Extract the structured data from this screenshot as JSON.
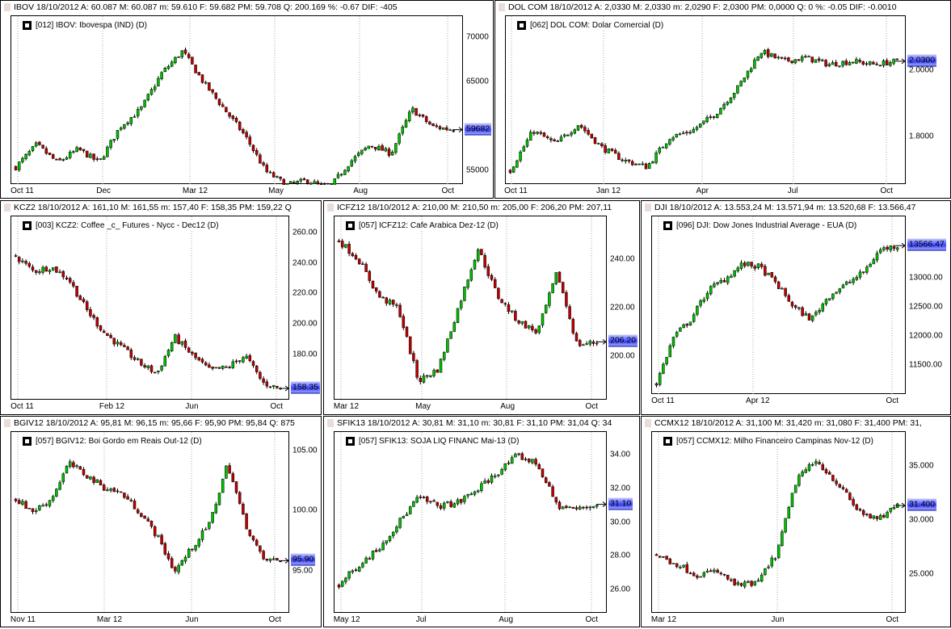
{
  "colors": {
    "up": "#00c000",
    "down": "#c00000",
    "wick": "#000000",
    "last_price_bg": "#3c46ff"
  },
  "chart_data": [
    {
      "type": "candlestick",
      "header": "IBOV   18/10/2012  A: 60.087   M: 60.087   m: 59.610   F: 59.682  PM: 59.708  Q: 200.169  %: -0.67  DIF: -405",
      "legend": "[012] IBOV: Ibovespa          (IND)      (D)",
      "ylim": [
        53500,
        72400
      ],
      "yticks": [
        "70000",
        "65000",
        "55000"
      ],
      "ytick_values": [
        70000,
        65000,
        55000
      ],
      "last": "59682",
      "last_value": 59682,
      "xticks": [
        "Oct 11",
        "Dec",
        "Mar 12",
        "May",
        "Aug",
        "Oct"
      ],
      "path": [
        55500,
        58000,
        56000,
        57500,
        56000,
        60000,
        62000,
        66000,
        68500,
        65000,
        62000,
        59000,
        55000,
        53500,
        54000,
        53000,
        56000,
        58000,
        57000,
        62000,
        60000,
        59700
      ]
    },
    {
      "type": "candlestick",
      "header": "DOL COM   18/10/2012  A: 2,0330   M: 2,0330   m: 2,0290   F: 2,0300  PM: 0,0000  Q: 0   %: -0.05  DIF: -0.0010",
      "legend": "[062] DOL COM: Dolar Comercial       (D)",
      "ylim": [
        1.656,
        2.166
      ],
      "yticks": [
        "2.0000",
        "1.8000"
      ],
      "ytick_values": [
        2.0,
        1.8
      ],
      "last": "2.0300",
      "last_value": 2.03,
      "xticks": [
        "Oct 11",
        "Jan 12",
        "Apr",
        "Jul",
        "Oct"
      ],
      "path": [
        1.7,
        1.82,
        1.78,
        1.84,
        1.77,
        1.73,
        1.71,
        1.8,
        1.82,
        1.87,
        1.95,
        2.06,
        2.03,
        2.04,
        2.02,
        2.03,
        2.02,
        2.03
      ]
    },
    {
      "type": "candlestick",
      "header": "KCZ2   18/10/2012  A: 161,10   M: 161,55   m: 157,40   F: 158,35  PM: 159,22  Q",
      "legend": "[003] KCZ2: Coffee _c_ Futures - Nycc - Dec12      (D)",
      "ylim": [
        150.4,
        271
      ],
      "yticks": [
        "260.00",
        "240.00",
        "220.00",
        "200.00",
        "180.00"
      ],
      "ytick_values": [
        260,
        240,
        220,
        200,
        180
      ],
      "last": "158.35",
      "last_value": 158.35,
      "xticks": [
        "Oct 11",
        "Feb 12",
        "Jun",
        "Oct"
      ],
      "path": [
        245,
        235,
        238,
        230,
        210,
        195,
        185,
        175,
        168,
        192,
        180,
        170,
        172,
        180,
        162,
        158
      ]
    },
    {
      "type": "candlestick",
      "header": "ICFZ12   18/10/2012  A: 210,00   M: 210,50   m: 205,00   F: 206,20  PM: 207,11",
      "legend": "[057] ICFZ12: Cafe Arabica Dez-12       (D)",
      "ylim": [
        182,
        258
      ],
      "yticks": [
        "240.00",
        "220.00",
        "200.00"
      ],
      "ytick_values": [
        240,
        220,
        200
      ],
      "last": "206.20",
      "last_value": 206.2,
      "xticks": [
        "Mar 12",
        "May",
        "Aug",
        "Oct"
      ],
      "path": [
        248,
        240,
        225,
        220,
        190,
        195,
        220,
        245,
        225,
        215,
        210,
        235,
        205,
        206
      ]
    },
    {
      "type": "candlestick",
      "header": "DJI   18/10/2012  A: 13.553,24   M: 13.571,94   m: 13.520,68   F: 13.566,47",
      "legend": "[096] DJI: Dow Jones Industrial Average - EUA      (D)",
      "ylim": [
        11000,
        14070
      ],
      "yticks": [
        "13000.00",
        "12500.00",
        "12000.00",
        "11500.00"
      ],
      "ytick_values": [
        13000,
        12500,
        12000,
        11500
      ],
      "last": "13566.47",
      "last_value": 13566.47,
      "xticks": [
        "Oct 11",
        "Apr 12",
        "Oct"
      ],
      "path": [
        11200,
        12000,
        12300,
        12800,
        13000,
        13250,
        13200,
        12900,
        12500,
        12300,
        12700,
        12900,
        13100,
        13500,
        13566
      ]
    },
    {
      "type": "candlestick",
      "header": "BGIV12   18/10/2012  A: 95,81   M: 96,15   m: 95,66   F: 95,90  PM: 95,84  Q: 875",
      "legend": "[057] BGIV12: Boi Gordo em Reais Out-12      (D)",
      "ylim": [
        91.5,
        106.6
      ],
      "yticks": [
        "105.00",
        "100.00",
        "95.00"
      ],
      "ytick_values": [
        105,
        100,
        95
      ],
      "last": "95.90",
      "last_value": 95.9,
      "xticks": [
        "Nov 11",
        "Mar 12",
        "Jun",
        "Oct"
      ],
      "path": [
        101,
        100,
        101,
        104,
        103,
        102,
        101.5,
        100,
        98,
        95,
        97,
        99,
        104,
        99,
        96,
        95.9
      ]
    },
    {
      "type": "candlestick",
      "header": "SFIK13   18/10/2012  A: 30,81   M: 31,10   m: 30,81   F: 31,10  PM: 31,04  Q: 34",
      "legend": "[057] SFIK13: SOJA LIQ FINANC Mai-13      (D)",
      "ylim": [
        24.6,
        35.4
      ],
      "yticks": [
        "34.00",
        "32.00",
        "30.00",
        "28.00",
        "26.00"
      ],
      "ytick_values": [
        34,
        32,
        30,
        28,
        26
      ],
      "last": "31.10",
      "last_value": 31.1,
      "xticks": [
        "May 12",
        "Jul",
        "Aug",
        "Oct"
      ],
      "path": [
        26.3,
        27.5,
        28.5,
        30,
        31.5,
        31,
        31.2,
        32,
        33,
        34,
        33.5,
        31,
        30.8,
        31.1
      ]
    },
    {
      "type": "candlestick",
      "header": "CCMX12   18/10/2012  A: 31,100   M: 31,420   m: 31,080   F: 31,400  PM: 31,",
      "legend": "[057] CCMX12: Milho Financeiro Campinas Nov-12      (D)",
      "ylim": [
        21.4,
        38.2
      ],
      "yticks": [
        "35.000",
        "30.000",
        "25.000"
      ],
      "ytick_values": [
        35,
        30,
        25
      ],
      "last": "31.400",
      "last_value": 31.4,
      "xticks": [
        "Mar 12",
        "Jun",
        "Oct"
      ],
      "path": [
        26.8,
        26,
        25,
        25.3,
        24,
        24.2,
        27,
        34,
        35.5,
        33.5,
        31,
        30,
        31.4
      ]
    }
  ]
}
